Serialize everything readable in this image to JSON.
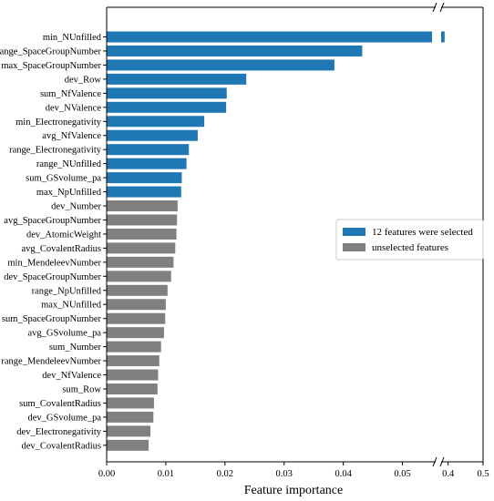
{
  "chart_data": {
    "type": "bar",
    "orientation": "horizontal",
    "xlabel": "Feature importance",
    "ylabel": "",
    "title": "",
    "x_axis_break": {
      "from": 0.055,
      "to": 0.38
    },
    "xlim": [
      0,
      0.5
    ],
    "xticks": [
      "0.00",
      "0.01",
      "0.02",
      "0.03",
      "0.04",
      "0.05",
      "0.4",
      "0.5"
    ],
    "xtick_values": [
      0,
      0.01,
      0.02,
      0.03,
      0.04,
      0.05,
      0.4,
      0.5
    ],
    "categories": [
      "min_NUnfilled",
      "range_SpaceGroupNumber",
      "max_SpaceGroupNumber",
      "dev_Row",
      "sum_NfValence",
      "dev_NValence",
      "min_Electronegativity",
      "avg_NfValence",
      "range_Electronegativity",
      "range_NUnfilled",
      "sum_GSvolume_pa",
      "max_NpUnfilled",
      "dev_Number",
      "avg_SpaceGroupNumber",
      "dev_AtomicWeight",
      "avg_CovalentRadius",
      "min_MendeleevNumber",
      "dev_SpaceGroupNumber",
      "range_NpUnfilled",
      "max_NUnfilled",
      "sum_SpaceGroupNumber",
      "avg_GSvolume_pa",
      "sum_Number",
      "range_MendeleevNumber",
      "dev_NfValence",
      "sum_Row",
      "sum_CovalentRadius",
      "dev_GSvolume_pa",
      "dev_Electronegativity",
      "dev_CovalentRadius"
    ],
    "values": [
      0.39,
      0.0432,
      0.0385,
      0.0236,
      0.0203,
      0.0202,
      0.0165,
      0.0154,
      0.0139,
      0.0135,
      0.0127,
      0.0126,
      0.012,
      0.0119,
      0.0118,
      0.0116,
      0.0113,
      0.0109,
      0.0103,
      0.01,
      0.0099,
      0.0097,
      0.0092,
      0.0089,
      0.0087,
      0.0086,
      0.008,
      0.0079,
      0.0074,
      0.0071
    ],
    "selected_count": 12,
    "legend": {
      "placement": "center-right",
      "entries": [
        {
          "label": "12 features were selected",
          "color": "#1f77b4"
        },
        {
          "label": "unselected features",
          "color": "#808080"
        }
      ]
    },
    "colors": {
      "selected": "#1f77b4",
      "unselected": "#808080"
    }
  }
}
